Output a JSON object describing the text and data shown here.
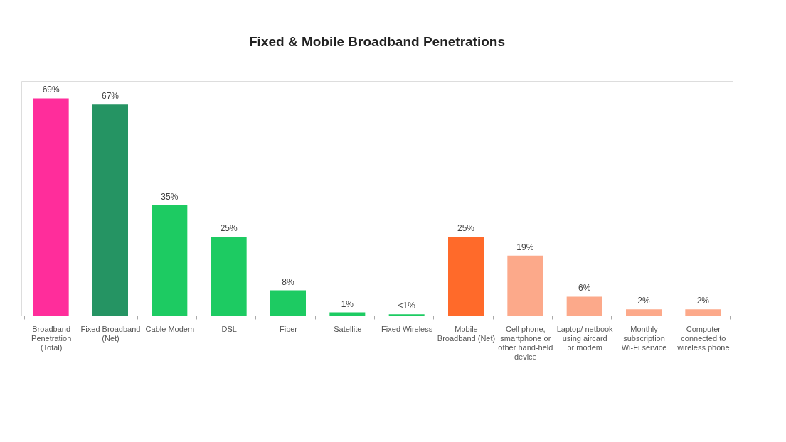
{
  "chart_data": {
    "type": "bar",
    "title": "Fixed & Mobile Broadband Penetrations",
    "categories": [
      "Broadband Penetration (Total)",
      "Fixed Broadband (Net)",
      "Cable Modem",
      "DSL",
      "Fiber",
      "Satellite",
      "Fixed Wireless",
      "Mobile Broadband (Net)",
      "Cell phone, smartphone or other hand-held device",
      "Laptop/ netbook using aircard or modem",
      "Monthly subscription Wi-Fi service",
      "Computer connected to wireless phone"
    ],
    "values": [
      69,
      67,
      35,
      25,
      8,
      1,
      0.4,
      25,
      19,
      6,
      2,
      2
    ],
    "colors": [
      "#ff2d9b",
      "#259463",
      "#1dcb62",
      "#1dcb62",
      "#1dcb62",
      "#1dcb62",
      "#1dcb62",
      "#ff6a2a",
      "#fca98a",
      "#fca98a",
      "#fca98a",
      "#fca98a"
    ],
    "value_labels": [
      "69%",
      "67%",
      "35%",
      "25%",
      "8%",
      "1%",
      "<1%",
      "25%",
      "19%",
      "6%",
      "2%",
      "2%"
    ],
    "grid": false
  }
}
